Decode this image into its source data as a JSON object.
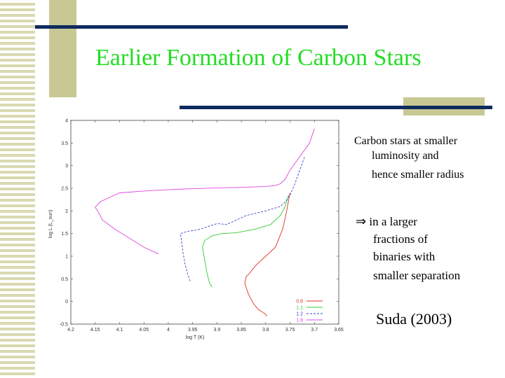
{
  "slide": {
    "title": "Earlier Formation of Carbon Stars",
    "bullet1_line1": "Carbon stars at smaller",
    "bullet1_line2": "luminosity and",
    "bullet1_line3": "hence smaller radius",
    "bullet2_arrow": "⇒",
    "bullet2_line1": "in a larger",
    "bullet2_line2": "fractions of",
    "bullet2_line3": "binaries with",
    "bullet2_line4": "smaller separation",
    "citation": "Suda (2003)"
  },
  "colors": {
    "title": "#22dd22",
    "bar": "#0d2b5e",
    "deco": "#c8c894"
  },
  "chart_data": {
    "type": "line",
    "xlabel": "log T    (K)",
    "ylabel": "log L  (L_sun)",
    "xlim": [
      4.2,
      3.65
    ],
    "ylim": [
      -0.5,
      4
    ],
    "xticks": [
      "4.2",
      "4.15",
      "4.1",
      "4.05",
      "4",
      "3.95",
      "3.9",
      "3.85",
      "3.8",
      "3.75",
      "3.7",
      "3.65"
    ],
    "yticks": [
      "-0.5",
      "0",
      "0.5",
      "1",
      "1.5",
      "2",
      "2.5",
      "3",
      "3.5",
      "4"
    ],
    "legend_position": "bottom-right",
    "series": [
      {
        "name": "0.8",
        "color": "#dd3322",
        "dash": "",
        "x": [
          3.798,
          3.8,
          3.815,
          3.825,
          3.835,
          3.843,
          3.84,
          3.835,
          3.82,
          3.8,
          3.78,
          3.765,
          3.757,
          3.75
        ],
        "y": [
          -0.33,
          -0.28,
          -0.18,
          -0.05,
          0.15,
          0.4,
          0.55,
          0.6,
          0.8,
          1.0,
          1.2,
          1.6,
          2.0,
          2.4
        ]
      },
      {
        "name": "1.1",
        "color": "#33cc33",
        "dash": "",
        "x": [
          3.91,
          3.915,
          3.92,
          3.925,
          3.93,
          3.925,
          3.91,
          3.89,
          3.86,
          3.82,
          3.79,
          3.77,
          3.76,
          3.753
        ],
        "y": [
          0.32,
          0.4,
          0.6,
          0.9,
          1.2,
          1.35,
          1.45,
          1.5,
          1.52,
          1.6,
          1.7,
          1.9,
          2.1,
          2.35
        ]
      },
      {
        "name": "1.2",
        "color": "#3344cc",
        "dash": "3,2",
        "x": [
          3.955,
          3.96,
          3.965,
          3.97,
          3.975,
          3.96,
          3.94,
          3.92,
          3.9,
          3.88,
          3.86,
          3.84,
          3.82,
          3.8,
          3.785,
          3.77,
          3.76,
          3.75,
          3.74,
          3.73,
          3.72
        ],
        "y": [
          0.45,
          0.6,
          0.8,
          1.1,
          1.5,
          1.55,
          1.58,
          1.65,
          1.72,
          1.7,
          1.8,
          1.9,
          1.95,
          2.0,
          2.05,
          2.1,
          2.2,
          2.35,
          2.6,
          2.9,
          3.2
        ]
      },
      {
        "name": "1.8",
        "color": "#dd44dd",
        "dash": "",
        "x": [
          4.02,
          4.05,
          4.08,
          4.11,
          4.135,
          4.145,
          4.15,
          4.14,
          4.12,
          4.1,
          4.05,
          4.0,
          3.95,
          3.9,
          3.85,
          3.8,
          3.78,
          3.77,
          3.76,
          3.75,
          3.73,
          3.71,
          3.7
        ],
        "y": [
          1.05,
          1.2,
          1.4,
          1.6,
          1.8,
          2.0,
          2.08,
          2.2,
          2.3,
          2.4,
          2.44,
          2.47,
          2.49,
          2.51,
          2.52,
          2.54,
          2.56,
          2.6,
          2.7,
          2.9,
          3.2,
          3.5,
          3.82
        ]
      }
    ]
  }
}
